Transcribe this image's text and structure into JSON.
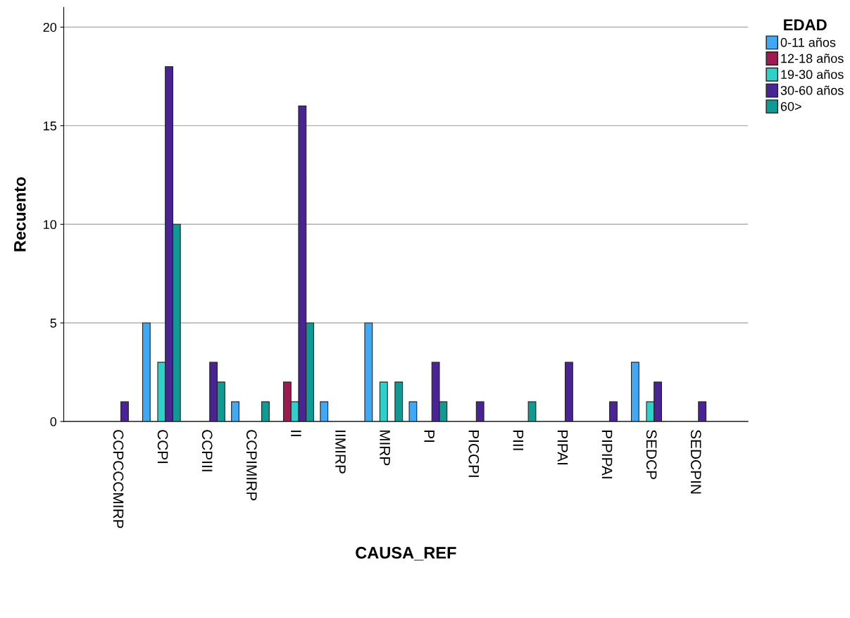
{
  "chart_data": {
    "type": "bar",
    "xlabel": "CAUSA_REF",
    "ylabel": "Recuento",
    "legend_title": "EDAD",
    "legend": "right",
    "grid": "y",
    "categories": [
      "CCPCCCMIRP",
      "CCPI",
      "CCPIII",
      "CCPIMIRP",
      "II",
      "IIMIRP",
      "MIRP",
      "PI",
      "PICCPI",
      "PIII",
      "PIPAI",
      "PIPIPAI",
      "SEDCP",
      "SEDCPIN"
    ],
    "ylim": [
      0,
      21
    ],
    "yticks": [
      0,
      5,
      10,
      15,
      20
    ],
    "series": [
      {
        "name": "0-11 años",
        "color": "#3fa9f5",
        "values": [
          null,
          5,
          null,
          1,
          null,
          1,
          5,
          1,
          null,
          null,
          null,
          null,
          3,
          null
        ]
      },
      {
        "name": "12-18 años",
        "color": "#9e1a50",
        "values": [
          null,
          null,
          null,
          null,
          2,
          null,
          null,
          null,
          null,
          null,
          null,
          null,
          null,
          null
        ]
      },
      {
        "name": "19-30 años",
        "color": "#2ed1c9",
        "values": [
          null,
          3,
          null,
          null,
          1,
          null,
          2,
          null,
          null,
          null,
          null,
          null,
          1,
          null
        ]
      },
      {
        "name": "30-60 años",
        "color": "#4a2394",
        "values": [
          1,
          18,
          3,
          null,
          16,
          null,
          null,
          3,
          1,
          null,
          3,
          1,
          2,
          1
        ]
      },
      {
        "name": "60>",
        "color": "#0f9a94",
        "values": [
          null,
          10,
          2,
          1,
          5,
          null,
          2,
          1,
          null,
          1,
          null,
          null,
          null,
          null
        ]
      }
    ]
  }
}
